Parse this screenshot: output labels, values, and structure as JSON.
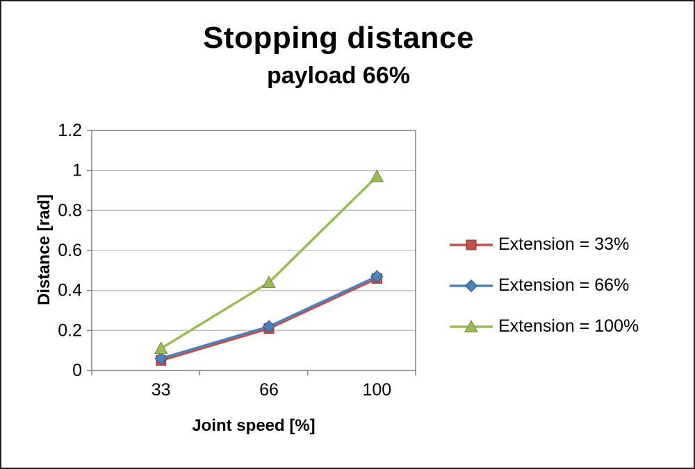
{
  "chart_data": {
    "type": "line",
    "title": "Stopping distance",
    "subtitle": "payload 66%",
    "xlabel": "Joint speed [%]",
    "ylabel": "Distance [rad]",
    "categories": [
      "33",
      "66",
      "100"
    ],
    "series": [
      {
        "name": "Extension = 33%",
        "color": "#c0504d",
        "edge": "#8c3836",
        "marker": "square",
        "values": [
          0.05,
          0.21,
          0.46
        ]
      },
      {
        "name": "Extension = 66%",
        "color": "#4f81bd",
        "edge": "#35567e",
        "marker": "diamond",
        "values": [
          0.06,
          0.22,
          0.47
        ]
      },
      {
        "name": "Extension = 100%",
        "color": "#9bbb59",
        "edge": "#6f883c",
        "marker": "triangle",
        "values": [
          0.11,
          0.44,
          0.97
        ]
      }
    ],
    "ylim": [
      0,
      1.2
    ],
    "ytick_step": 0.2,
    "grid": true,
    "legend_position": "right",
    "grid_color": "#bfbfbf",
    "axis_color": "#7f7f7f"
  }
}
